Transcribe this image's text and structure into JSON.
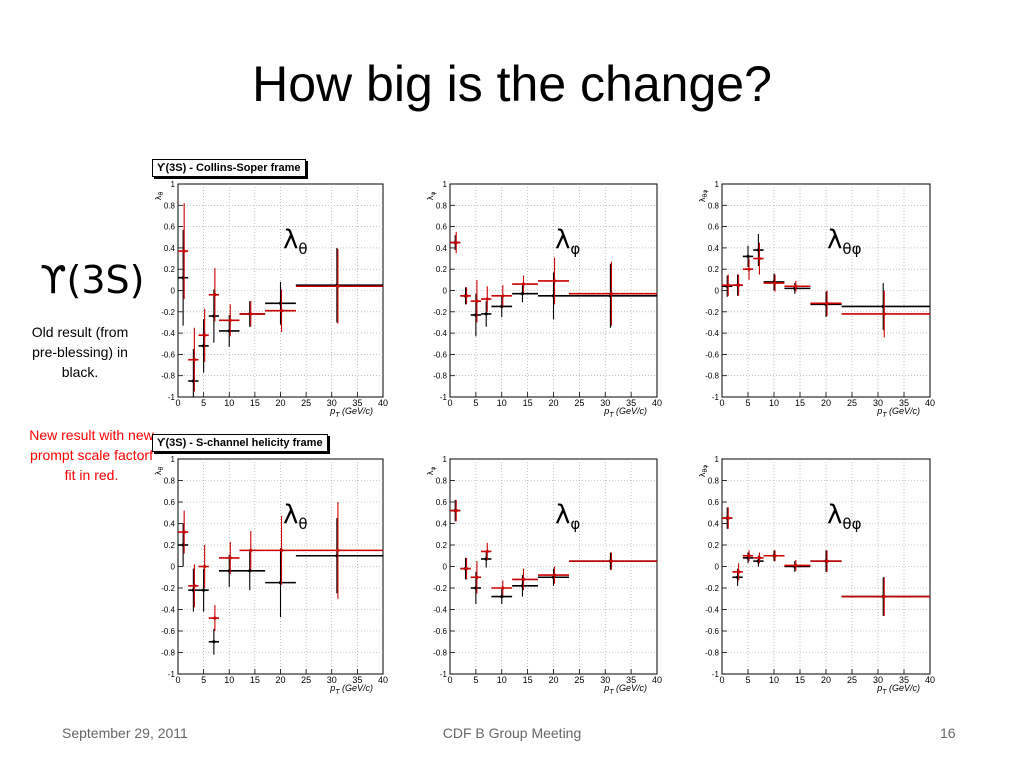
{
  "slide": {
    "title": "How big is the change?",
    "state_label": "ϒ(3S)",
    "old_note": "Old result (from pre-blessing) in black.",
    "new_note": "New result  with new prompt scale factorf fit in red.",
    "top_frame_label": "ϒ(3S) - Collins-Soper frame",
    "bottom_frame_label": "ϒ(3S) - S-channel helicity frame",
    "footer": {
      "date": "September 29, 2011",
      "center": "CDF B Group Meeting",
      "page": "16"
    }
  },
  "colors": {
    "old": "#000000",
    "new": "#cc0000"
  },
  "chart_data": [
    {
      "type": "scatter",
      "frame": "Collins-Soper",
      "param": "λθ",
      "ylabel": "λθ",
      "xlabel": "p_T (GeV/c)",
      "xlim": [
        0,
        40
      ],
      "ylim": [
        -1,
        1
      ],
      "xticks": [
        0,
        5,
        10,
        15,
        20,
        25,
        30,
        35,
        40
      ],
      "yticks": [
        -1,
        -0.8,
        -0.6,
        -0.4,
        -0.2,
        0,
        0.2,
        0.4,
        0.6,
        0.8,
        1
      ],
      "grid": true,
      "series": [
        {
          "name": "old",
          "points": [
            [
              1,
              0.12,
              0.45
            ],
            [
              3,
              -0.85,
              0.3
            ],
            [
              5,
              -0.52,
              0.25
            ],
            [
              7,
              -0.24,
              0.25
            ],
            [
              10,
              -0.38,
              0.15
            ],
            [
              14,
              -0.22,
              0.12
            ],
            [
              20,
              -0.12,
              0.2
            ],
            [
              31,
              0.05,
              0.35
            ]
          ],
          "xerr": [
            [
              0,
              2
            ],
            [
              2,
              4
            ],
            [
              4,
              6
            ],
            [
              6,
              8
            ],
            [
              8,
              12
            ],
            [
              12,
              17
            ],
            [
              17,
              23
            ],
            [
              23,
              40
            ]
          ]
        },
        {
          "name": "new",
          "points": [
            [
              1.2,
              0.37,
              0.45
            ],
            [
              3.2,
              -0.65,
              0.3
            ],
            [
              5.2,
              -0.42,
              0.25
            ],
            [
              7.2,
              -0.04,
              0.25
            ],
            [
              10.2,
              -0.28,
              0.15
            ],
            [
              14.2,
              -0.22,
              0.12
            ],
            [
              20.2,
              -0.19,
              0.2
            ],
            [
              31.2,
              0.04,
              0.35
            ]
          ],
          "xerr": [
            [
              0,
              2
            ],
            [
              2,
              4
            ],
            [
              4,
              6
            ],
            [
              6,
              8
            ],
            [
              8,
              12
            ],
            [
              12,
              17
            ],
            [
              17,
              23
            ],
            [
              23,
              40
            ]
          ]
        }
      ]
    },
    {
      "type": "scatter",
      "frame": "Collins-Soper",
      "param": "λφ",
      "ylabel": "λφ",
      "xlabel": "p_T (GeV/c)",
      "xlim": [
        0,
        40
      ],
      "ylim": [
        -1,
        1
      ],
      "xticks": [
        0,
        5,
        10,
        15,
        20,
        25,
        30,
        35,
        40
      ],
      "yticks": [
        -1,
        -0.8,
        -0.6,
        -0.4,
        -0.2,
        0,
        0.2,
        0.4,
        0.6,
        0.8,
        1
      ],
      "grid": true,
      "series": [
        {
          "name": "old",
          "points": [
            [
              1,
              0.45,
              0.07
            ],
            [
              3,
              -0.05,
              0.08
            ],
            [
              5,
              -0.23,
              0.2
            ],
            [
              7,
              -0.22,
              0.12
            ],
            [
              10,
              -0.15,
              0.1
            ],
            [
              14,
              -0.03,
              0.08
            ],
            [
              20,
              -0.05,
              0.22
            ],
            [
              31,
              -0.05,
              0.3
            ]
          ],
          "xerr": [
            [
              0,
              2
            ],
            [
              2,
              4
            ],
            [
              4,
              6
            ],
            [
              6,
              8
            ],
            [
              8,
              12
            ],
            [
              12,
              17
            ],
            [
              17,
              23
            ],
            [
              23,
              40
            ]
          ]
        },
        {
          "name": "new",
          "points": [
            [
              1.2,
              0.45,
              0.1
            ],
            [
              3.2,
              -0.05,
              0.08
            ],
            [
              5.2,
              -0.1,
              0.2
            ],
            [
              7.2,
              -0.08,
              0.12
            ],
            [
              10.2,
              -0.05,
              0.1
            ],
            [
              14.2,
              0.06,
              0.08
            ],
            [
              20.2,
              0.09,
              0.22
            ],
            [
              31.2,
              -0.03,
              0.3
            ]
          ],
          "xerr": [
            [
              0,
              2
            ],
            [
              2,
              4
            ],
            [
              4,
              6
            ],
            [
              6,
              8
            ],
            [
              8,
              12
            ],
            [
              12,
              17
            ],
            [
              17,
              23
            ],
            [
              23,
              40
            ]
          ]
        }
      ]
    },
    {
      "type": "scatter",
      "frame": "Collins-Soper",
      "param": "λθφ",
      "ylabel": "λθφ",
      "xlabel": "p_T (GeV/c)",
      "xlim": [
        0,
        40
      ],
      "ylim": [
        -1,
        1
      ],
      "xticks": [
        0,
        5,
        10,
        15,
        20,
        25,
        30,
        35,
        40
      ],
      "yticks": [
        -1,
        -0.8,
        -0.6,
        -0.4,
        -0.2,
        0,
        0.2,
        0.4,
        0.6,
        0.8,
        1
      ],
      "grid": true,
      "series": [
        {
          "name": "old",
          "points": [
            [
              1,
              0.04,
              0.1
            ],
            [
              3,
              0.05,
              0.1
            ],
            [
              5,
              0.32,
              0.1
            ],
            [
              7,
              0.38,
              0.15
            ],
            [
              10,
              0.08,
              0.08
            ],
            [
              14,
              0.02,
              0.05
            ],
            [
              20,
              -0.13,
              0.12
            ],
            [
              31,
              -0.15,
              0.22
            ]
          ],
          "xerr": [
            [
              0,
              2
            ],
            [
              2,
              4
            ],
            [
              4,
              6
            ],
            [
              6,
              8
            ],
            [
              8,
              12
            ],
            [
              12,
              17
            ],
            [
              17,
              23
            ],
            [
              23,
              40
            ]
          ]
        },
        {
          "name": "new",
          "points": [
            [
              1.2,
              0.05,
              0.1
            ],
            [
              3.2,
              0.05,
              0.1
            ],
            [
              5.2,
              0.2,
              0.1
            ],
            [
              7.2,
              0.3,
              0.15
            ],
            [
              10.2,
              0.07,
              0.08
            ],
            [
              14.2,
              0.04,
              0.05
            ],
            [
              20.2,
              -0.12,
              0.12
            ],
            [
              31.2,
              -0.22,
              0.22
            ]
          ],
          "xerr": [
            [
              0,
              2
            ],
            [
              2,
              4
            ],
            [
              4,
              6
            ],
            [
              6,
              8
            ],
            [
              8,
              12
            ],
            [
              12,
              17
            ],
            [
              17,
              23
            ],
            [
              23,
              40
            ]
          ]
        }
      ]
    },
    {
      "type": "scatter",
      "frame": "S-channel helicity",
      "param": "λθ",
      "ylabel": "λθ",
      "xlabel": "p_T (GeV/c)",
      "xlim": [
        0,
        40
      ],
      "ylim": [
        -1,
        1
      ],
      "xticks": [
        0,
        5,
        10,
        15,
        20,
        25,
        30,
        35,
        40
      ],
      "yticks": [
        -1,
        -0.8,
        -0.6,
        -0.4,
        -0.2,
        0,
        0.2,
        0.4,
        0.6,
        0.8,
        1
      ],
      "grid": true,
      "series": [
        {
          "name": "old",
          "points": [
            [
              1,
              0.2,
              0.2
            ],
            [
              3,
              -0.22,
              0.2
            ],
            [
              5,
              -0.22,
              0.2
            ],
            [
              7,
              -0.7,
              0.12
            ],
            [
              10,
              -0.04,
              0.15
            ],
            [
              14,
              -0.04,
              0.18
            ],
            [
              20,
              -0.15,
              0.32
            ],
            [
              31,
              0.1,
              0.35
            ]
          ],
          "xerr": [
            [
              0,
              2
            ],
            [
              2,
              4
            ],
            [
              4,
              6
            ],
            [
              6,
              8
            ],
            [
              8,
              12
            ],
            [
              12,
              17
            ],
            [
              17,
              23
            ],
            [
              23,
              40
            ]
          ]
        },
        {
          "name": "new",
          "points": [
            [
              1.2,
              0.32,
              0.2
            ],
            [
              3.2,
              -0.18,
              0.2
            ],
            [
              5.2,
              0.0,
              0.2
            ],
            [
              7.2,
              -0.48,
              0.12
            ],
            [
              10.2,
              0.08,
              0.15
            ],
            [
              14.2,
              0.15,
              0.18
            ],
            [
              20.2,
              0.15,
              0.32
            ],
            [
              31.2,
              0.15,
              0.45
            ]
          ],
          "xerr": [
            [
              0,
              2
            ],
            [
              2,
              4
            ],
            [
              4,
              6
            ],
            [
              6,
              8
            ],
            [
              8,
              12
            ],
            [
              12,
              17
            ],
            [
              17,
              23
            ],
            [
              23,
              40
            ]
          ]
        }
      ]
    },
    {
      "type": "scatter",
      "frame": "S-channel helicity",
      "param": "λφ",
      "ylabel": "λφ",
      "xlabel": "p_T (GeV/c)",
      "xlim": [
        0,
        40
      ],
      "ylim": [
        -1,
        1
      ],
      "xticks": [
        0,
        5,
        10,
        15,
        20,
        25,
        30,
        35,
        40
      ],
      "yticks": [
        -1,
        -0.8,
        -0.6,
        -0.4,
        -0.2,
        0,
        0.2,
        0.4,
        0.6,
        0.8,
        1
      ],
      "grid": true,
      "series": [
        {
          "name": "old",
          "points": [
            [
              1,
              0.52,
              0.1
            ],
            [
              3,
              -0.02,
              0.1
            ],
            [
              5,
              -0.2,
              0.15
            ],
            [
              7,
              0.07,
              0.08
            ],
            [
              10,
              -0.28,
              0.07
            ],
            [
              14,
              -0.18,
              0.1
            ],
            [
              20,
              -0.1,
              0.08
            ],
            [
              31,
              0.05,
              0.08
            ]
          ],
          "xerr": [
            [
              0,
              2
            ],
            [
              2,
              4
            ],
            [
              4,
              6
            ],
            [
              6,
              8
            ],
            [
              8,
              12
            ],
            [
              12,
              17
            ],
            [
              17,
              23
            ],
            [
              23,
              40
            ]
          ]
        },
        {
          "name": "new",
          "points": [
            [
              1.2,
              0.52,
              0.1
            ],
            [
              3.2,
              -0.02,
              0.1
            ],
            [
              5.2,
              -0.1,
              0.15
            ],
            [
              7.2,
              0.14,
              0.08
            ],
            [
              10.2,
              -0.2,
              0.07
            ],
            [
              14.2,
              -0.12,
              0.1
            ],
            [
              20.2,
              -0.08,
              0.08
            ],
            [
              31.2,
              0.05,
              0.08
            ]
          ],
          "xerr": [
            [
              0,
              2
            ],
            [
              2,
              4
            ],
            [
              4,
              6
            ],
            [
              6,
              8
            ],
            [
              8,
              12
            ],
            [
              12,
              17
            ],
            [
              17,
              23
            ],
            [
              23,
              40
            ]
          ]
        }
      ]
    },
    {
      "type": "scatter",
      "frame": "S-channel helicity",
      "param": "λθφ",
      "ylabel": "λθφ",
      "xlabel": "p_T (GeV/c)",
      "xlim": [
        0,
        40
      ],
      "ylim": [
        -1,
        1
      ],
      "xticks": [
        0,
        5,
        10,
        15,
        20,
        25,
        30,
        35,
        40
      ],
      "yticks": [
        -1,
        -0.8,
        -0.6,
        -0.4,
        -0.2,
        0,
        0.2,
        0.4,
        0.6,
        0.8,
        1
      ],
      "grid": true,
      "series": [
        {
          "name": "old",
          "points": [
            [
              1,
              0.45,
              0.1
            ],
            [
              3,
              -0.1,
              0.08
            ],
            [
              5,
              0.08,
              0.05
            ],
            [
              7,
              0.05,
              0.05
            ],
            [
              10,
              0.1,
              0.05
            ],
            [
              14,
              0.0,
              0.05
            ],
            [
              20,
              0.05,
              0.1
            ],
            [
              31,
              -0.28,
              0.18
            ]
          ],
          "xerr": [
            [
              0,
              2
            ],
            [
              2,
              4
            ],
            [
              4,
              6
            ],
            [
              6,
              8
            ],
            [
              8,
              12
            ],
            [
              12,
              17
            ],
            [
              17,
              23
            ],
            [
              23,
              40
            ]
          ]
        },
        {
          "name": "new",
          "points": [
            [
              1.2,
              0.45,
              0.1
            ],
            [
              3.2,
              -0.05,
              0.08
            ],
            [
              5.2,
              0.1,
              0.05
            ],
            [
              7.2,
              0.08,
              0.05
            ],
            [
              10.2,
              0.1,
              0.05
            ],
            [
              14.2,
              0.01,
              0.05
            ],
            [
              20.2,
              0.05,
              0.1
            ],
            [
              31.2,
              -0.28,
              0.18
            ]
          ],
          "xerr": [
            [
              0,
              2
            ],
            [
              2,
              4
            ],
            [
              4,
              6
            ],
            [
              6,
              8
            ],
            [
              8,
              12
            ],
            [
              12,
              17
            ],
            [
              17,
              23
            ],
            [
              23,
              40
            ]
          ]
        }
      ]
    }
  ]
}
